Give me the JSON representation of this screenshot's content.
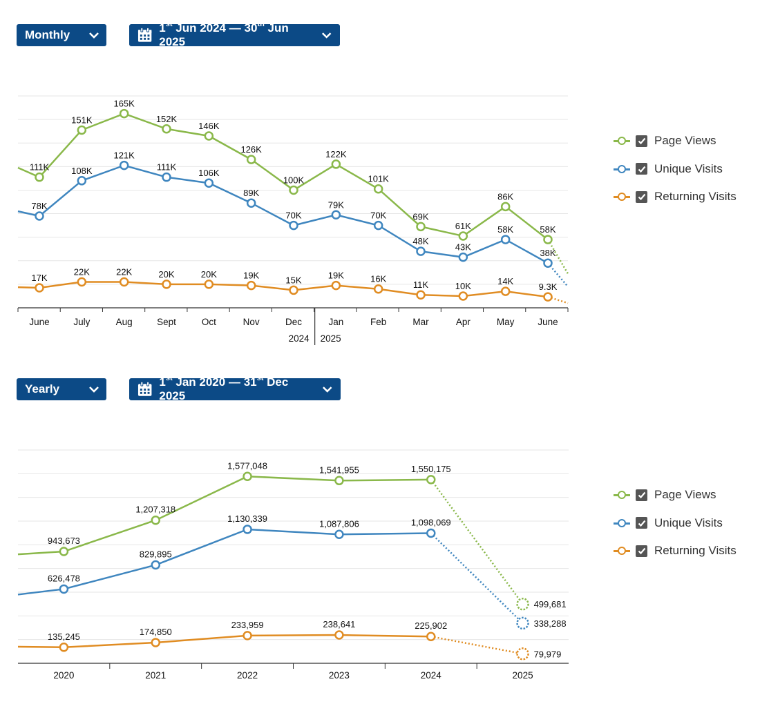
{
  "colors": {
    "page_views": "#8ab84a",
    "unique_visits": "#3f86bf",
    "returning_visits": "#e08c22",
    "button_bg": "#0c4a86"
  },
  "monthly": {
    "period_select": {
      "label": "Monthly",
      "icon": "chevron-down-icon"
    },
    "date_range": {
      "start_day": "1",
      "start_sup": "st",
      "start_rest": "Jun 2024",
      "separator": "—",
      "end_day": "30",
      "end_sup": "th",
      "end_rest": "Jun 2025",
      "icon": "calendar-icon"
    },
    "legend": [
      "Page Views",
      "Unique Visits",
      "Returning Visits"
    ]
  },
  "yearly": {
    "period_select": {
      "label": "Yearly",
      "icon": "chevron-down-icon"
    },
    "date_range": {
      "start_day": "1",
      "start_sup": "st",
      "start_rest": "Jan 2020",
      "separator": "—",
      "end_day": "31",
      "end_sup": "st",
      "end_rest": "Dec 2025",
      "icon": "calendar-icon"
    },
    "legend": [
      "Page Views",
      "Unique Visits",
      "Returning Visits"
    ]
  },
  "chart_data": [
    {
      "type": "line",
      "title": "",
      "xlabel": "",
      "ylabel": "",
      "categories": [
        "June",
        "July",
        "Aug",
        "Sept",
        "Oct",
        "Nov",
        "Dec",
        "Jan",
        "Feb",
        "Mar",
        "Apr",
        "May",
        "June"
      ],
      "year_labels": [
        "2024",
        "2025"
      ],
      "ylim": [
        0,
        180000
      ],
      "grid": true,
      "legend_position": "right",
      "series": [
        {
          "name": "Page Views",
          "values": [
            111000,
            151000,
            165000,
            152000,
            146000,
            126000,
            100000,
            122000,
            101000,
            69000,
            61000,
            86000,
            58000
          ],
          "labels": [
            "111K",
            "151K",
            "165K",
            "152K",
            "146K",
            "126K",
            "100K",
            "122K",
            "101K",
            "69K",
            "61K",
            "86K",
            "58K"
          ],
          "lead_in": 119000,
          "trail_out": 29000
        },
        {
          "name": "Unique Visits",
          "values": [
            78000,
            108000,
            121000,
            111000,
            106000,
            89000,
            70000,
            79000,
            70000,
            48000,
            43000,
            58000,
            38000
          ],
          "labels": [
            "78K",
            "108K",
            "121K",
            "111K",
            "106K",
            "89K",
            "70K",
            "79K",
            "70K",
            "48K",
            "43K",
            "58K",
            "38K"
          ],
          "lead_in": 82000,
          "trail_out": 18000
        },
        {
          "name": "Returning Visits",
          "values": [
            17000,
            22000,
            22000,
            20000,
            20000,
            19000,
            15000,
            19000,
            16000,
            11000,
            10000,
            14000,
            9300
          ],
          "labels": [
            "17K",
            "22K",
            "22K",
            "20K",
            "20K",
            "19K",
            "15K",
            "19K",
            "16K",
            "11K",
            "10K",
            "14K",
            "9.3K"
          ],
          "lead_in": 17500,
          "trail_out": 4000
        }
      ]
    },
    {
      "type": "line",
      "title": "",
      "xlabel": "",
      "ylabel": "",
      "categories": [
        "2020",
        "2021",
        "2022",
        "2023",
        "2024",
        "2025"
      ],
      "ylim": [
        0,
        1800000
      ],
      "grid": true,
      "legend_position": "right",
      "series": [
        {
          "name": "Page Views",
          "values": [
            943673,
            1207318,
            1577048,
            1541955,
            1550175,
            499681
          ],
          "labels": [
            "943,673",
            "1,207,318",
            "1,577,048",
            "1,541,955",
            "1,550,175",
            "499,681"
          ],
          "lead_in": 920000
        },
        {
          "name": "Unique Visits",
          "values": [
            626478,
            829895,
            1130339,
            1087806,
            1098069,
            338288
          ],
          "labels": [
            "626,478",
            "829,895",
            "1,130,339",
            "1,087,806",
            "1,098,069",
            "338,288"
          ],
          "lead_in": 580000
        },
        {
          "name": "Returning Visits",
          "values": [
            135245,
            174850,
            233959,
            238641,
            225902,
            79979
          ],
          "labels": [
            "135,245",
            "174,850",
            "233,959",
            "238,641",
            "225,902",
            "79,979"
          ],
          "lead_in": 140000
        }
      ]
    }
  ]
}
